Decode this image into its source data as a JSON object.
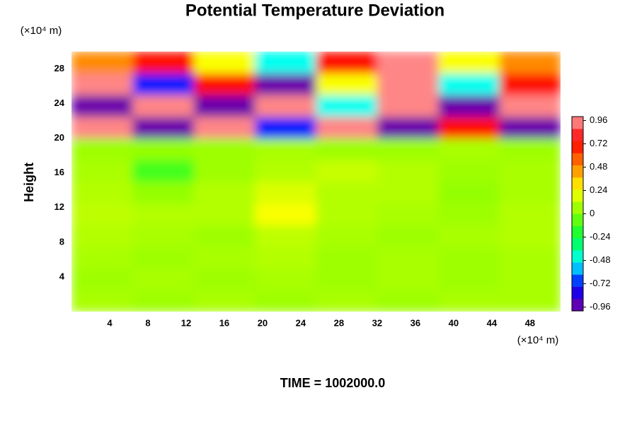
{
  "chart_data": {
    "type": "heatmap",
    "title": "Potential Temperature Deviation",
    "ylabel": "Height",
    "yunit": "(×10⁴ m)",
    "xunit": "(×10⁴ m)",
    "footer": "TIME = 1002000.0",
    "xlim": [
      0,
      51.2
    ],
    "ylim": [
      0,
      30
    ],
    "xticks": [
      4,
      8,
      12,
      16,
      20,
      24,
      28,
      32,
      36,
      40,
      44,
      48
    ],
    "yticks": [
      4,
      8,
      12,
      16,
      20,
      24,
      28
    ],
    "x": [
      3.2,
      9.6,
      16,
      22.4,
      28.8,
      35.2,
      41.6,
      48
    ],
    "y": [
      1.25,
      3.75,
      6.25,
      8.75,
      11.25,
      13.75,
      16.25,
      18.75,
      21.25,
      23.75,
      26.25,
      28.75
    ],
    "z": [
      [
        0.08,
        0.06,
        0.08,
        0.06,
        0.08,
        0.06,
        0.08,
        0.08
      ],
      [
        0.06,
        0.08,
        0.06,
        0.08,
        0.06,
        0.08,
        0.06,
        0.08
      ],
      [
        0.08,
        0.06,
        0.08,
        0.1,
        0.06,
        0.08,
        0.06,
        0.08
      ],
      [
        0.1,
        0.08,
        0.06,
        0.12,
        0.08,
        0.06,
        0.08,
        0.1
      ],
      [
        0.12,
        0.1,
        0.1,
        0.24,
        0.1,
        0.08,
        0.06,
        0.1
      ],
      [
        0.1,
        0.04,
        0.1,
        0.18,
        0.1,
        0.1,
        0.04,
        0.08
      ],
      [
        0.08,
        -0.12,
        0.06,
        0.1,
        0.14,
        0.1,
        0.06,
        0.08
      ],
      [
        0.06,
        0.04,
        0.06,
        0.08,
        0.06,
        0.06,
        0.08,
        0.06
      ],
      [
        0.96,
        -0.96,
        0.96,
        -0.72,
        0.96,
        -0.96,
        0.72,
        -0.96
      ],
      [
        -0.96,
        0.96,
        -0.96,
        0.96,
        -0.48,
        0.96,
        -0.96,
        0.96
      ],
      [
        0.96,
        -0.72,
        0.72,
        -0.96,
        0.24,
        0.96,
        -0.48,
        0.72
      ],
      [
        0.48,
        0.72,
        0.24,
        -0.48,
        0.72,
        0.96,
        0.24,
        0.48
      ]
    ],
    "clim": [
      -1.0,
      1.0
    ],
    "cticks": [
      0.96,
      0.72,
      0.48,
      0.24,
      0,
      -0.24,
      -0.48,
      -0.72,
      -0.96
    ],
    "colormap": [
      "#80009c",
      "#0000ff",
      "#00ffff",
      "#00ff40",
      "#80ff00",
      "#ffff00",
      "#ff8000",
      "#ff0000",
      "#ffa0a0"
    ]
  }
}
